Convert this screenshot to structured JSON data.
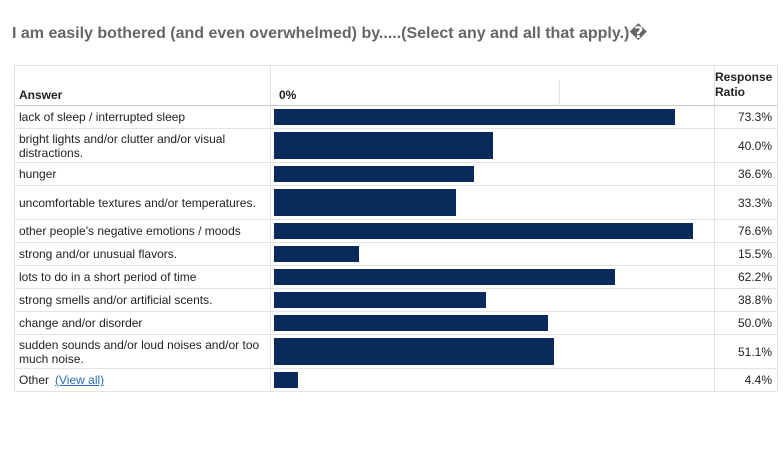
{
  "question": "I am easily bothered (and even overwhelmed) by.....(Select any and all that apply.)�",
  "header": {
    "answer": "Answer",
    "scale_start": "0%",
    "response_ratio_line1": "Response",
    "response_ratio_line2": "Ratio"
  },
  "other_link": "(View all)",
  "chart_data": {
    "type": "bar",
    "orientation": "horizontal",
    "title": "I am easily bothered (and even overwhelmed) by.....(Select any and all that apply.)�",
    "xlabel": "",
    "ylabel": "Answer",
    "value_label": "Response Ratio",
    "xlim": [
      0,
      100
    ],
    "bar_color": "#0b2a5c",
    "categories": [
      "lack of sleep / interrupted sleep",
      "bright lights and/or clutter and/or visual distractions.",
      "hunger",
      "uncomfortable textures and/or temperatures.",
      "other people's negative emotions / moods",
      "strong and/or unusual flavors.",
      "lots to do in a short period of time",
      "strong smells and/or artificial scents.",
      "change and/or disorder",
      "sudden sounds and/or loud noises and/or too much noise.",
      "Other"
    ],
    "values": [
      73.3,
      40.0,
      36.6,
      33.3,
      76.6,
      15.5,
      62.2,
      38.8,
      50.0,
      51.1,
      4.4
    ],
    "labels": [
      "73.3%",
      "40.0%",
      "36.6%",
      "33.3%",
      "76.6%",
      "15.5%",
      "62.2%",
      "38.8%",
      "50.0%",
      "51.1%",
      "4.4%"
    ]
  }
}
